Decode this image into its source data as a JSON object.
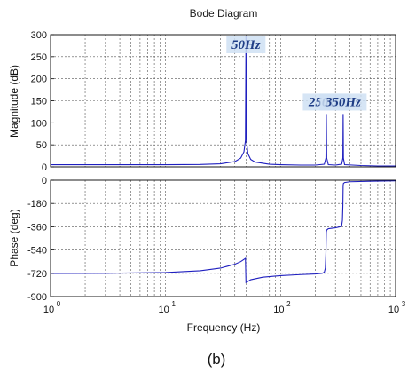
{
  "figure": {
    "caption": "(b)"
  },
  "chart_data": [
    {
      "type": "line",
      "title": "Bode Diagram",
      "xlabel": "",
      "ylabel": "Magnitude (dB)",
      "xscale": "log",
      "xlim": [
        1,
        1000
      ],
      "ylim": [
        0,
        300
      ],
      "yticks": [
        0,
        50,
        100,
        150,
        200,
        250,
        300
      ],
      "grid": true,
      "series": [
        {
          "color": "#1f1fbf",
          "x": [
            1,
            2,
            5,
            10,
            20,
            30,
            40,
            45,
            48,
            49.5,
            50,
            50.5,
            52,
            55,
            60,
            80,
            100,
            150,
            200,
            240,
            248,
            250,
            252,
            260,
            300,
            340,
            348,
            350,
            352,
            360,
            500,
            700,
            1000
          ],
          "y": [
            5,
            5,
            5,
            5,
            5.5,
            7,
            12,
            20,
            34,
            60,
            298,
            60,
            30,
            17,
            11,
            6,
            5,
            4,
            4,
            6,
            20,
            120,
            20,
            5,
            4,
            6,
            20,
            120,
            20,
            5,
            3,
            2,
            2
          ]
        }
      ],
      "annotations": [
        {
          "text": "50Hz",
          "x": 50,
          "y": 300
        },
        {
          "text": "250Hz",
          "x": 250,
          "y": 130
        },
        {
          "text": "350Hz",
          "x": 350,
          "y": 130
        }
      ]
    },
    {
      "type": "line",
      "title": "",
      "xlabel": "Frequency  (Hz)",
      "ylabel": "Phase (deg)",
      "xscale": "log",
      "xlim": [
        1,
        1000
      ],
      "ylim": [
        -900,
        0
      ],
      "yticks": [
        -900,
        -720,
        -540,
        -360,
        -180,
        0
      ],
      "xticks": [
        {
          "base": "10",
          "exp": "0",
          "value": 1
        },
        {
          "base": "10",
          "exp": "1",
          "value": 10
        },
        {
          "base": "10",
          "exp": "2",
          "value": 100
        },
        {
          "base": "10",
          "exp": "3",
          "value": 1000
        }
      ],
      "grid": true,
      "series": [
        {
          "color": "#1f1fbf",
          "x": [
            1,
            3,
            10,
            20,
            30,
            40,
            45,
            49.5,
            50,
            50.5,
            55,
            70,
            100,
            150,
            200,
            230,
            240,
            245,
            248,
            250,
            252,
            260,
            300,
            330,
            340,
            345,
            348,
            350,
            352,
            360,
            400,
            600,
            1000
          ],
          "y": [
            -721,
            -720,
            -714,
            -700,
            -680,
            -650,
            -630,
            -605,
            -792,
            -790,
            -770,
            -750,
            -738,
            -730,
            -725,
            -720,
            -712,
            -680,
            -560,
            -400,
            -385,
            -375,
            -368,
            -360,
            -350,
            -310,
            -200,
            -40,
            -25,
            -18,
            -12,
            -8,
            -5
          ]
        }
      ]
    }
  ]
}
